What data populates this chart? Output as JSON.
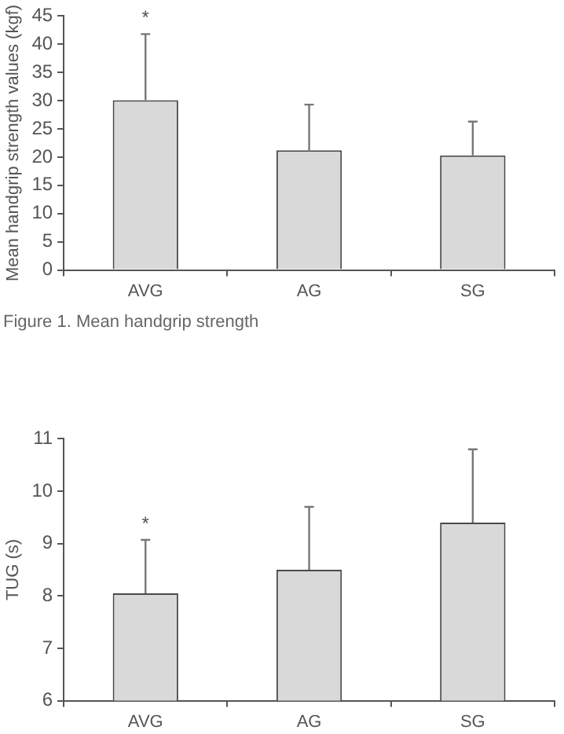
{
  "chart_data": [
    {
      "type": "bar",
      "ylabel": "Mean handgrip strength values (kgf)",
      "categories": [
        "AVG",
        "AG",
        "SG"
      ],
      "series": [
        {
          "color": "#d9d9d9",
          "values": [
            30.1,
            21.2,
            20.3
          ],
          "errors": [
            [
              30.1,
              41.8
            ],
            [
              21.2,
              29.3
            ],
            [
              20.3,
              26.3
            ]
          ]
        }
      ],
      "ylim": [
        0,
        45
      ],
      "yticks": [
        0,
        5,
        10,
        15,
        20,
        25,
        30,
        35,
        40,
        45
      ],
      "legend": false,
      "annotations": [
        "*",
        "Figure 1. Mean handgrip strength"
      ]
    },
    {
      "type": "bar",
      "ylabel": "TUG (s)",
      "categories": [
        "AVG",
        "AG",
        "SG"
      ],
      "series": [
        {
          "color": "#d9d9d9",
          "values": [
            8.05,
            8.5,
            9.4
          ],
          "errors": [
            [
              8.05,
              9.07
            ],
            [
              8.5,
              9.7
            ],
            [
              9.4,
              10.8
            ]
          ]
        }
      ],
      "ylim": [
        6,
        11
      ],
      "yticks": [
        6,
        7,
        8,
        9,
        10,
        11
      ],
      "legend": false,
      "annotations": [
        "*"
      ]
    }
  ]
}
